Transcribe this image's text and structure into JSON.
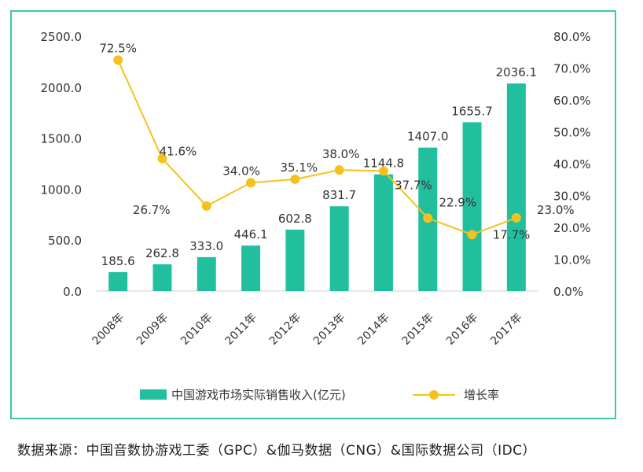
{
  "chart_data": {
    "type": "bar",
    "categories": [
      "2008年",
      "2009年",
      "2010年",
      "2011年",
      "2012年",
      "2013年",
      "2014年",
      "2015年",
      "2016年",
      "2017年"
    ],
    "series": [
      {
        "name": "中国游戏市场实际销售收入(亿元)",
        "type": "bar",
        "axis": "left",
        "values": [
          185.6,
          262.8,
          333.0,
          446.1,
          602.8,
          831.7,
          1144.8,
          1407.0,
          1655.7,
          2036.1
        ],
        "labels": [
          "185.6",
          "262.8",
          "333.0",
          "446.1",
          "602.8",
          "831.7",
          "1144.8",
          "1407.0",
          "1655.7",
          "2036.1"
        ]
      },
      {
        "name": "增长率",
        "type": "line",
        "axis": "right",
        "values": [
          72.5,
          41.6,
          26.7,
          34.0,
          35.1,
          38.0,
          37.7,
          22.9,
          17.7,
          23.0
        ],
        "labels": [
          "72.5%",
          "41.6%",
          "26.7%",
          "34.0%",
          "35.1%",
          "38.0%",
          "37.7%",
          "22.9%",
          "17.7%",
          "23.0%"
        ]
      }
    ],
    "y_left": {
      "range": [
        0,
        2500
      ],
      "ticks": [
        "0.0",
        "500.0",
        "1000.0",
        "1500.0",
        "2000.0",
        "2500.0"
      ]
    },
    "y_right": {
      "range": [
        0,
        80
      ],
      "ticks": [
        "0.0%",
        "10.0%",
        "20.0%",
        "30.0%",
        "40.0%",
        "50.0%",
        "60.0%",
        "70.0%",
        "80.0%"
      ]
    },
    "legend": {
      "position": "bottom"
    },
    "grid": false,
    "colors": {
      "bar": "#22bf9e",
      "line": "#f5c11e",
      "frame": "#3cc8a6"
    }
  },
  "source": "数据来源：中国音数协游戏工委（GPC）&伽马数据（CNG）&国际数据公司（IDC）"
}
